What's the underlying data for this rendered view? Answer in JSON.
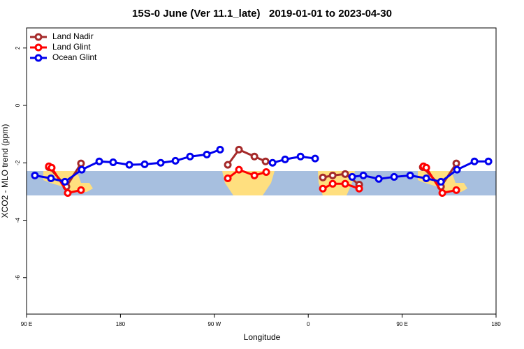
{
  "chart_data": {
    "type": "line",
    "title": "15S-0 June (Ver 11.1_late)   2019-01-01 to 2023-04-30",
    "x_label": "Longitude",
    "y_label": "XCO2 - MLO trend (ppm)",
    "xlim": [
      90,
      540
    ],
    "ylim": [
      -7.27,
      2.7
    ],
    "xticks": [
      {
        "value": 90,
        "label": "90 E"
      },
      180,
      {
        "value": 270,
        "label": "90 W"
      },
      {
        "value": 360,
        "label": "0"
      },
      {
        "value": 450,
        "label": "90 E"
      },
      {
        "value": 540,
        "label": "180"
      }
    ],
    "yticks": [
      -6,
      -4,
      -2,
      0,
      2
    ],
    "legend": "top-left",
    "series": [
      {
        "name": "Land Nadir",
        "color": "#a52a2a",
        "x": [
          111.4,
          128.2,
          142.2,
          null,
          282.9,
          293.6,
          308.4,
          319.1,
          null,
          374,
          383.4,
          395.4,
          408.8,
          null,
          469.8,
          487.2,
          501.9
        ],
        "values": [
          -2.15,
          -2.83,
          -2.02,
          null,
          -2.07,
          -1.54,
          -1.78,
          -1.95,
          null,
          -2.51,
          -2.44,
          -2.39,
          -2.76,
          null,
          -2.15,
          -2.83,
          -2.02
        ]
      },
      {
        "name": "Land Glint",
        "color": "#ff0000",
        "x": [
          111.4,
          114.1,
          129.5,
          142.2,
          null,
          282.9,
          293.6,
          308.4,
          319.7,
          null,
          374,
          383.4,
          395.4,
          408.8,
          null,
          470.4,
          473.1,
          488.5,
          501.9
        ],
        "values": [
          -2.12,
          -2.17,
          -3.05,
          -2.95,
          null,
          -2.54,
          -2.24,
          -2.44,
          -2.32,
          null,
          -2.9,
          -2.73,
          -2.73,
          -2.9,
          null,
          -2.12,
          -2.17,
          -3.05,
          -2.95
        ]
      },
      {
        "name": "Ocean Glint",
        "color": "#0000ee",
        "x": [
          98,
          113.4,
          126.8,
          142.9,
          159.7,
          173,
          188.5,
          203.2,
          218.6,
          232.7,
          246.7,
          262.8,
          275.5,
          null,
          325.8,
          337.8,
          352.6,
          366.6,
          null,
          402.1,
          412.8,
          427.6,
          442.3,
          457.7,
          473.1,
          487.2,
          502.6,
          519.3,
          532.7
        ],
        "values": [
          -2.44,
          -2.54,
          -2.66,
          -2.24,
          -1.95,
          -1.98,
          -2.07,
          -2.05,
          -2.0,
          -1.93,
          -1.78,
          -1.71,
          -1.54,
          null,
          -2.0,
          -1.88,
          -1.78,
          -1.85,
          null,
          -2.49,
          -2.44,
          -2.56,
          -2.49,
          -2.44,
          -2.54,
          -2.66,
          -2.24,
          -1.95,
          -1.95
        ]
      }
    ]
  }
}
